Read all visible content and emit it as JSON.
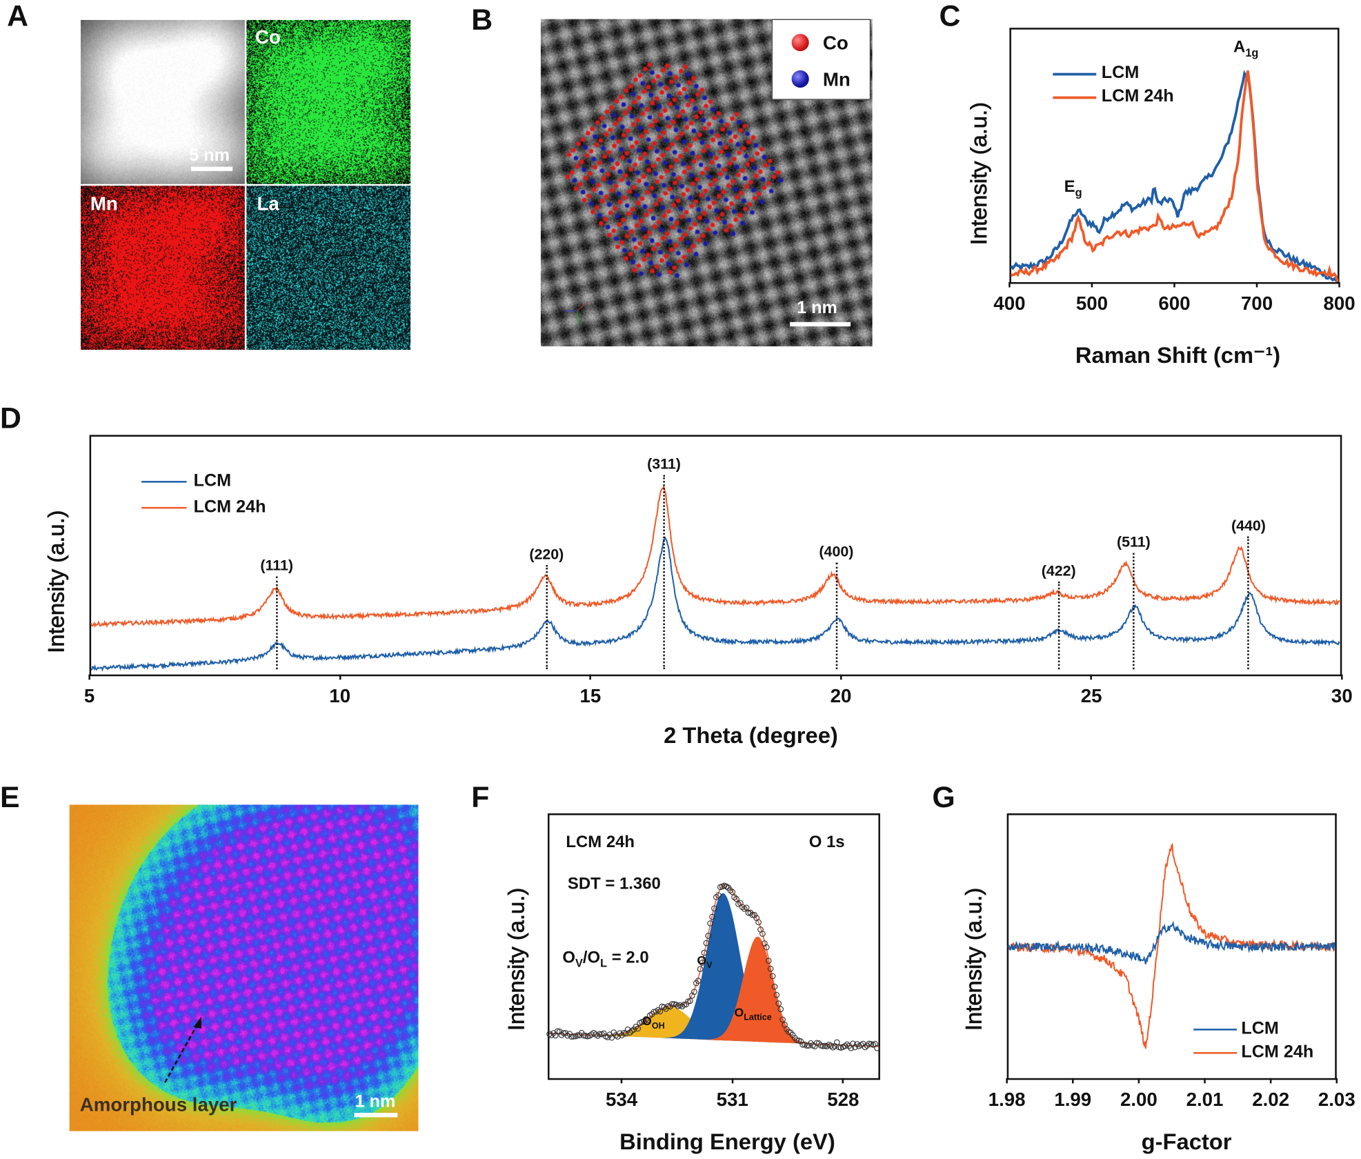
{
  "panels": {
    "A": {
      "label": "A",
      "tiles": [
        "",
        "Co",
        "Mn",
        "La"
      ],
      "scale_bar": "5 nm"
    },
    "B": {
      "label": "B",
      "legend": [
        "Co",
        "Mn"
      ],
      "legend_colors": [
        "#d81e1e",
        "#1a1aa8"
      ],
      "scale_bar": "1 nm"
    },
    "C": {
      "label": "C"
    },
    "D": {
      "label": "D"
    },
    "E": {
      "label": "E",
      "annotation": "Amorphous layer",
      "scale_bar": "1 nm"
    },
    "F": {
      "label": "F"
    },
    "G": {
      "label": "G"
    }
  },
  "chart_data": [
    {
      "panel": "C",
      "type": "line",
      "xlabel": "Raman Shift (cm⁻¹)",
      "ylabel": "Intensity (a.u.)",
      "xlim": [
        400,
        800
      ],
      "ylim": [
        0,
        100
      ],
      "xticks": [
        "400",
        "500",
        "600",
        "700",
        "800"
      ],
      "grid": false,
      "legend": "top-left",
      "annotations": [
        {
          "text": "E",
          "sub": "g",
          "x": 482
        },
        {
          "text": "A",
          "sub": "1g",
          "x": 688
        }
      ],
      "series": [
        {
          "name": "LCM",
          "color": "#1f5fa8",
          "x": [
            400,
            420,
            440,
            450,
            460,
            470,
            478,
            485,
            492,
            500,
            508,
            515,
            530,
            540,
            550,
            560,
            572,
            575,
            580,
            595,
            605,
            612,
            620,
            630,
            640,
            648,
            655,
            665,
            672,
            680,
            686,
            690,
            696,
            702,
            710,
            720,
            735,
            750,
            770,
            790,
            800
          ],
          "y": [
            6,
            6,
            8,
            11,
            15,
            22,
            27,
            28,
            24,
            23,
            20,
            25,
            28,
            31,
            29,
            31,
            33,
            38,
            31,
            33,
            26,
            35,
            36,
            38,
            41,
            44,
            47,
            55,
            62,
            74,
            83,
            82,
            66,
            40,
            19,
            14,
            11,
            8,
            6,
            2,
            0
          ]
        },
        {
          "name": "LCM 24h",
          "color": "#f05a28",
          "x": [
            400,
            420,
            440,
            455,
            465,
            475,
            482,
            490,
            500,
            510,
            520,
            530,
            545,
            560,
            575,
            580,
            590,
            605,
            620,
            625,
            632,
            645,
            655,
            662,
            670,
            678,
            684,
            690,
            695,
            702,
            710,
            720,
            735,
            750,
            770,
            790,
            800
          ],
          "y": [
            3,
            4,
            6,
            9,
            13,
            18,
            25,
            17,
            13,
            15,
            18,
            20,
            19,
            21,
            22,
            25,
            21,
            22,
            24,
            21,
            18,
            20,
            23,
            28,
            34,
            48,
            70,
            83,
            70,
            38,
            17,
            12,
            8,
            6,
            4,
            4,
            1
          ]
        }
      ]
    },
    {
      "panel": "D",
      "type": "line",
      "xlabel": "2 Theta (degree)",
      "ylabel": "Intensity (a.u.)",
      "xlim": [
        5,
        30
      ],
      "ylim": [
        0,
        100
      ],
      "xticks": [
        "5",
        "10",
        "15",
        "20",
        "25",
        "30"
      ],
      "grid": false,
      "legend": "top-left",
      "reflections": [
        {
          "label": "(111)",
          "x": 8.75
        },
        {
          "label": "(220)",
          "x": 14.15
        },
        {
          "label": "(311)",
          "x": 16.5
        },
        {
          "label": "(400)",
          "x": 19.95
        },
        {
          "label": "(422)",
          "x": 24.4
        },
        {
          "label": "(511)",
          "x": 25.9
        },
        {
          "label": "(440)",
          "x": 28.2
        }
      ],
      "series": [
        {
          "name": "LCM",
          "color": "#1f5fa8",
          "baseline": {
            "x": [
              5,
              10,
              14,
              17,
              20,
              25,
              30
            ],
            "y": [
              2.5,
              7,
              11,
              13,
              13,
              14,
              13
            ]
          },
          "peaks": [
            {
              "x": 8.75,
              "y": 13
            },
            {
              "x": 14.15,
              "y": 22
            },
            {
              "x": 16.5,
              "y": 57
            },
            {
              "x": 19.95,
              "y": 23
            },
            {
              "x": 24.4,
              "y": 18
            },
            {
              "x": 25.9,
              "y": 28
            },
            {
              "x": 28.2,
              "y": 34
            }
          ]
        },
        {
          "name": "LCM 24h",
          "color": "#f05a28",
          "baseline": {
            "x": [
              5,
              10,
              14,
              17,
              20,
              25,
              30
            ],
            "y": [
              21,
              24,
              27,
              29,
              30,
              31,
              30
            ]
          },
          "peaks": [
            {
              "x": 8.7,
              "y": 36
            },
            {
              "x": 14.1,
              "y": 41
            },
            {
              "x": 16.45,
              "y": 79
            },
            {
              "x": 19.85,
              "y": 42
            },
            {
              "x": 24.3,
              "y": 34
            },
            {
              "x": 25.7,
              "y": 46
            },
            {
              "x": 28.0,
              "y": 53
            }
          ]
        }
      ]
    },
    {
      "panel": "F",
      "type": "area",
      "xlabel": "Binding Energy (eV)",
      "ylabel": "Intensity (a.u.)",
      "xlim": [
        536,
        527
      ],
      "ylim": [
        0,
        100
      ],
      "xticks": [
        "534",
        "531",
        "528"
      ],
      "grid": false,
      "sample": "LCM 24h",
      "region": "O 1s",
      "sdt": "SDT = 1.360",
      "ratio": {
        "a": "O",
        "a_sub": "V",
        "b": "O",
        "b_sub": "L",
        "value": "= 2.0"
      },
      "baseline": {
        "x": [
          536,
          527
        ],
        "y": [
          17,
          12
        ]
      },
      "components": [
        {
          "label": "O",
          "sub": "OH",
          "center": 532.7,
          "height": 12,
          "sigma": 0.6,
          "color": "#f0b41e"
        },
        {
          "label": "O",
          "sub": "V",
          "center": 531.25,
          "height": 56,
          "sigma": 0.45,
          "color": "#1c5ea8"
        },
        {
          "label": "O",
          "sub": "Lattice",
          "center": 530.3,
          "height": 40,
          "sigma": 0.4,
          "color": "#f05a28"
        }
      ],
      "envelope_color": "#e0603a",
      "points_color": "#333333"
    },
    {
      "panel": "G",
      "type": "line",
      "xlabel": "g-Factor",
      "ylabel": "Intensity (a.u.)",
      "xlim": [
        1.98,
        2.03
      ],
      "ylim": [
        0,
        100
      ],
      "xticks": [
        "1.98",
        "1.99",
        "2.00",
        "2.01",
        "2.02",
        "2.03"
      ],
      "grid": false,
      "legend": "bottom-right",
      "series": [
        {
          "name": "LCM",
          "color": "#1f5fa8",
          "x": [
            1.98,
            1.99,
            1.995,
            2.0,
            2.001,
            2.002,
            2.003,
            2.004,
            2.005,
            2.007,
            2.01,
            2.015,
            2.03
          ],
          "y": [
            50,
            50,
            49,
            46,
            44,
            48,
            54,
            57,
            58,
            54,
            51,
            50,
            50
          ]
        },
        {
          "name": "LCM 24h",
          "color": "#f05a28",
          "x": [
            1.98,
            1.99,
            1.995,
            1.998,
            2.0,
            2.001,
            2.002,
            2.003,
            2.004,
            2.005,
            2.006,
            2.008,
            2.01,
            2.015,
            2.03
          ],
          "y": [
            50,
            49,
            45,
            38,
            22,
            11,
            30,
            55,
            80,
            88,
            78,
            62,
            55,
            51,
            50
          ]
        }
      ]
    }
  ]
}
